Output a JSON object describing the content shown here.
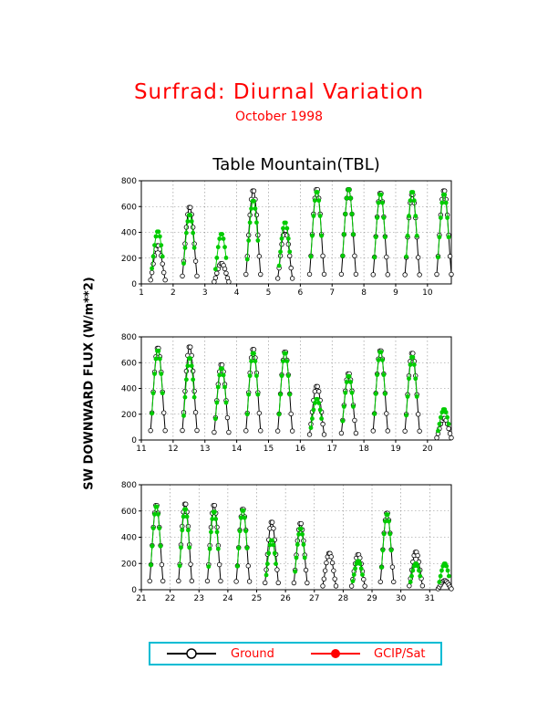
{
  "header": {
    "title": "Surfrad: Diurnal Variation",
    "subtitle": "October 1998",
    "station": "Table Mountain(TBL)"
  },
  "ylabel": "SW DOWNWARD FLUX (W/m**2)",
  "legend": {
    "ground": "Ground",
    "sat": "GCIP/Sat"
  },
  "colors": {
    "title": "#ff0000",
    "ground": "#000000",
    "sat": "#00cc00",
    "legend_sat": "#ff0000",
    "legend_border": "#00bcd4",
    "grid": "#888888"
  },
  "chart_data": [
    {
      "type": "line",
      "xlim": [
        1,
        10.75
      ],
      "ylim": [
        0,
        800
      ],
      "yticks": [
        0,
        200,
        400,
        600,
        800
      ],
      "xticks": [
        1,
        2,
        3,
        4,
        5,
        6,
        7,
        8,
        9,
        10
      ],
      "grid": true,
      "days": [
        1,
        2,
        3,
        4,
        5,
        6,
        7,
        8,
        9,
        10
      ],
      "ground_peak": [
        300,
        600,
        160,
        730,
        420,
        740,
        740,
        710,
        700,
        730
      ],
      "sat_peak": [
        410,
        540,
        390,
        650,
        480,
        720,
        740,
        700,
        720,
        700
      ]
    },
    {
      "type": "line",
      "xlim": [
        11,
        20.75
      ],
      "ylim": [
        0,
        800
      ],
      "yticks": [
        0,
        200,
        400,
        600,
        800
      ],
      "xticks": [
        11,
        12,
        13,
        14,
        15,
        16,
        17,
        18,
        19,
        20
      ],
      "grid": true,
      "days": [
        11,
        12,
        13,
        14,
        15,
        16,
        17,
        18,
        19,
        20
      ],
      "ground_peak": [
        720,
        730,
        590,
        710,
        690,
        420,
        520,
        700,
        680,
        170
      ],
      "sat_peak": [
        700,
        640,
        560,
        680,
        680,
        320,
        500,
        690,
        650,
        240
      ]
    },
    {
      "type": "line",
      "xlim": [
        21,
        31.75
      ],
      "ylim": [
        0,
        800
      ],
      "yticks": [
        0,
        200,
        400,
        600,
        800
      ],
      "xticks": [
        21,
        22,
        23,
        24,
        25,
        26,
        27,
        28,
        29,
        30,
        31
      ],
      "grid": true,
      "days": [
        21,
        22,
        23,
        24,
        25,
        26,
        27,
        28,
        29,
        30,
        31
      ],
      "ground_peak": [
        650,
        660,
        650,
        620,
        520,
        510,
        280,
        270,
        590,
        290,
        70
      ],
      "sat_peak": [
        640,
        620,
        600,
        610,
        380,
        470,
        0,
        220,
        580,
        200,
        200
      ]
    }
  ]
}
